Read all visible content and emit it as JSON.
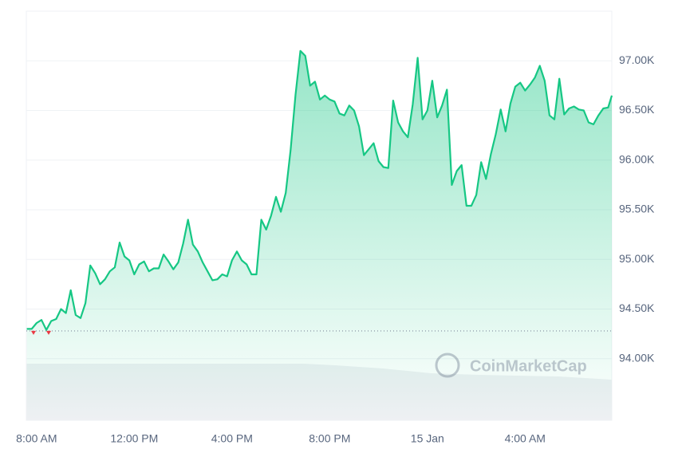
{
  "chart_data": {
    "type": "area",
    "watermark": "CoinMarketCap",
    "color": "#16c784",
    "reference_line": 94280,
    "reference_color": "#ea3943",
    "grid": true,
    "xlim": [
      -0.42,
      23.55
    ],
    "xticks": [
      {
        "value": 0,
        "label": "8:00 AM"
      },
      {
        "value": 4,
        "label": "12:00 PM"
      },
      {
        "value": 8,
        "label": "4:00 PM"
      },
      {
        "value": 12,
        "label": "8:00 PM"
      },
      {
        "value": 16,
        "label": "15 Jan"
      },
      {
        "value": 20,
        "label": "4:00 AM"
      }
    ],
    "ylim": [
      93380,
      97500
    ],
    "yticks": [
      {
        "value": 94000,
        "label": "94.00K"
      },
      {
        "value": 94500,
        "label": "94.50K"
      },
      {
        "value": 95000,
        "label": "95.00K"
      },
      {
        "value": 95500,
        "label": "95.50K"
      },
      {
        "value": 96000,
        "label": "96.00K"
      },
      {
        "value": 96500,
        "label": "96.50K"
      },
      {
        "value": 97000,
        "label": "97.00K"
      }
    ],
    "x": [
      -0.4,
      -0.2,
      0,
      0.2,
      0.4,
      0.6,
      0.8,
      1,
      1.2,
      1.4,
      1.6,
      1.8,
      2,
      2.2,
      2.4,
      2.6,
      2.8,
      3,
      3.2,
      3.4,
      3.6,
      3.8,
      4,
      4.2,
      4.4,
      4.6,
      4.8,
      5,
      5.2,
      5.4,
      5.6,
      5.8,
      6,
      6.2,
      6.4,
      6.6,
      6.8,
      7,
      7.2,
      7.4,
      7.6,
      7.8,
      8,
      8.2,
      8.4,
      8.6,
      8.8,
      9,
      9.2,
      9.4,
      9.6,
      9.8,
      10,
      10.2,
      10.4,
      10.6,
      10.8,
      11,
      11.2,
      11.4,
      11.6,
      11.8,
      12,
      12.2,
      12.4,
      12.6,
      12.8,
      13,
      13.2,
      13.4,
      13.6,
      13.8,
      14,
      14.2,
      14.4,
      14.6,
      14.8,
      15,
      15.2,
      15.4,
      15.6,
      15.8,
      16,
      16.2,
      16.4,
      16.6,
      16.8,
      17,
      17.2,
      17.4,
      17.6,
      17.8,
      18,
      18.2,
      18.4,
      18.6,
      18.8,
      19,
      19.2,
      19.4,
      19.6,
      19.8,
      20,
      20.2,
      20.4,
      20.6,
      20.8,
      21,
      21.2,
      21.4,
      21.6,
      21.8,
      22,
      22.2,
      22.4,
      22.6,
      22.8,
      23,
      23.2,
      23.4,
      23.55
    ],
    "values": [
      94300,
      94300,
      94360,
      94390,
      94290,
      94380,
      94400,
      94500,
      94460,
      94690,
      94440,
      94410,
      94560,
      94940,
      94860,
      94750,
      94800,
      94880,
      94920,
      95170,
      95030,
      94990,
      94850,
      94950,
      94980,
      94880,
      94910,
      94910,
      95050,
      94980,
      94900,
      94970,
      95160,
      95400,
      95150,
      95080,
      94970,
      94880,
      94790,
      94800,
      94850,
      94830,
      94990,
      95080,
      94990,
      94950,
      94850,
      94850,
      95400,
      95300,
      95440,
      95630,
      95480,
      95670,
      96100,
      96660,
      97100,
      97050,
      96750,
      96790,
      96610,
      96650,
      96610,
      96590,
      96470,
      96450,
      96550,
      96500,
      96340,
      96050,
      96110,
      96170,
      95990,
      95930,
      95920,
      96600,
      96380,
      96290,
      96230,
      96560,
      97030,
      96410,
      96500,
      96800,
      96430,
      96550,
      96710,
      95750,
      95890,
      95950,
      95540,
      95540,
      95650,
      95980,
      95810,
      96060,
      96260,
      96510,
      96290,
      96570,
      96740,
      96780,
      96700,
      96760,
      96830,
      96950,
      96800,
      96450,
      96410,
      96820,
      96460,
      96520,
      96540,
      96510,
      96500,
      96380,
      96360,
      96450,
      96520,
      96530,
      96650
    ]
  }
}
